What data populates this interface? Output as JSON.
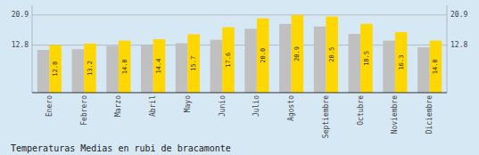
{
  "chart_data": {
    "type": "bar",
    "title": "Temperaturas Medias en rubi de bracamonte",
    "categories": [
      "Enero",
      "Febrero",
      "Marzo",
      "Abril",
      "Mayo",
      "Junio",
      "Julio",
      "Agosto",
      "Septiembre",
      "Octubre",
      "Noviembre",
      "Diciembre"
    ],
    "series": [
      {
        "color": "#C0C0C0",
        "values": [
          11.5,
          11.7,
          12.6,
          12.8,
          13.3,
          14.2,
          17.2,
          18.5,
          17.8,
          15.8,
          14.0,
          12.2
        ]
      },
      {
        "color": "#FFD700",
        "data_labels": true,
        "values": [
          12.8,
          13.2,
          14.0,
          14.4,
          15.7,
          17.6,
          20.0,
          20.9,
          20.5,
          18.5,
          16.3,
          14.0
        ],
        "value_labels": [
          "12.8",
          "13.2",
          "14.0",
          "14.4",
          "15.7",
          "17.6",
          "20.0",
          "20.9",
          "20.5",
          "18.5",
          "16.3",
          "14.0"
        ]
      }
    ],
    "ylim": [
      0,
      23.5
    ],
    "yticks": [
      12.8,
      20.9
    ],
    "y2lim": [
      0,
      23.5
    ],
    "y2ticks": [
      12.8,
      20.9
    ],
    "grid": true
  }
}
